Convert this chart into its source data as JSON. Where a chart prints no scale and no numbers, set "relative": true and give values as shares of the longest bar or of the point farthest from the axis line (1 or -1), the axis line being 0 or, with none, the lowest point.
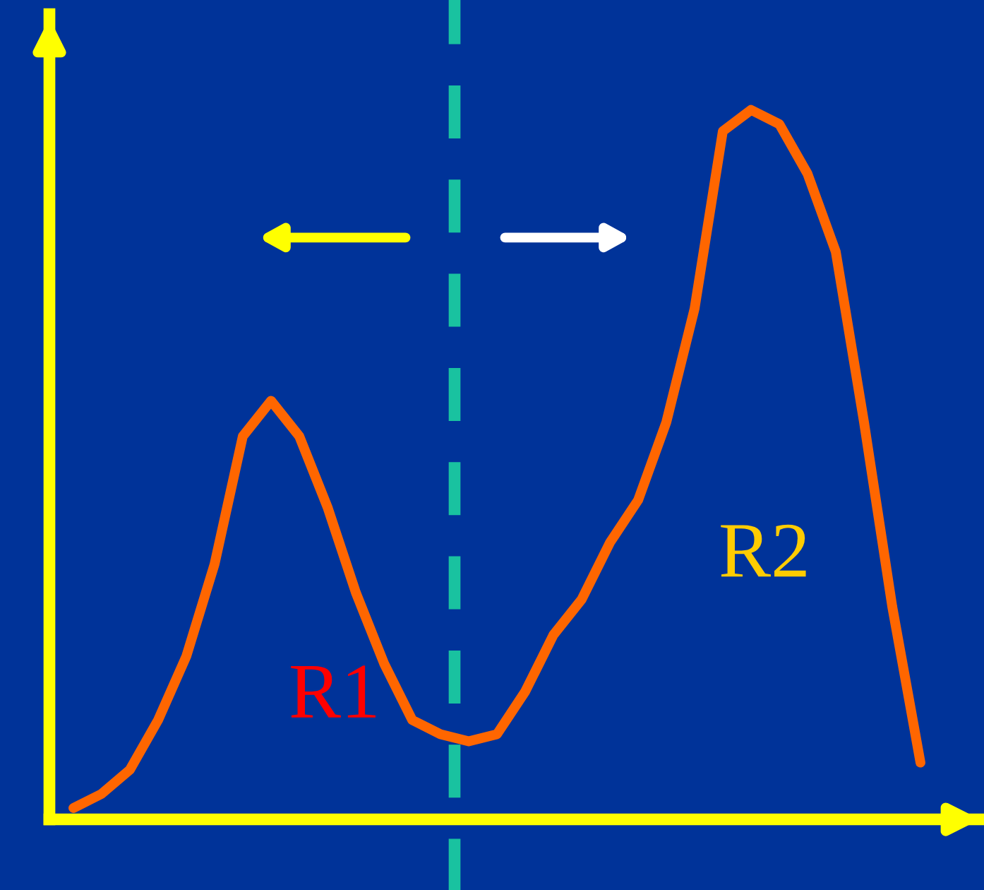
{
  "chart_data": {
    "type": "line",
    "relative": true,
    "categories": [
      null,
      null,
      null,
      null,
      null,
      null,
      null,
      null,
      null,
      null,
      null,
      null,
      null,
      null,
      null,
      null,
      null,
      null,
      null,
      null,
      null,
      null,
      null,
      null,
      null,
      null,
      null,
      null,
      null,
      null,
      null
    ],
    "series": [
      {
        "color": "#ff6600",
        "values": [
          0.016,
          0.036,
          0.07,
          0.14,
          0.23,
          0.36,
          0.54,
          0.59,
          0.54,
          0.44,
          0.32,
          0.22,
          0.14,
          0.12,
          0.11,
          0.12,
          0.18,
          0.26,
          0.31,
          0.39,
          0.45,
          0.56,
          0.72,
          0.97,
          1,
          0.98,
          0.91,
          0.8,
          0.56,
          0.3,
          0.08
        ]
      }
    ],
    "annotations": [
      "R1",
      "R2"
    ],
    "legend": false,
    "marker": "none",
    "line_style": "solid"
  }
}
